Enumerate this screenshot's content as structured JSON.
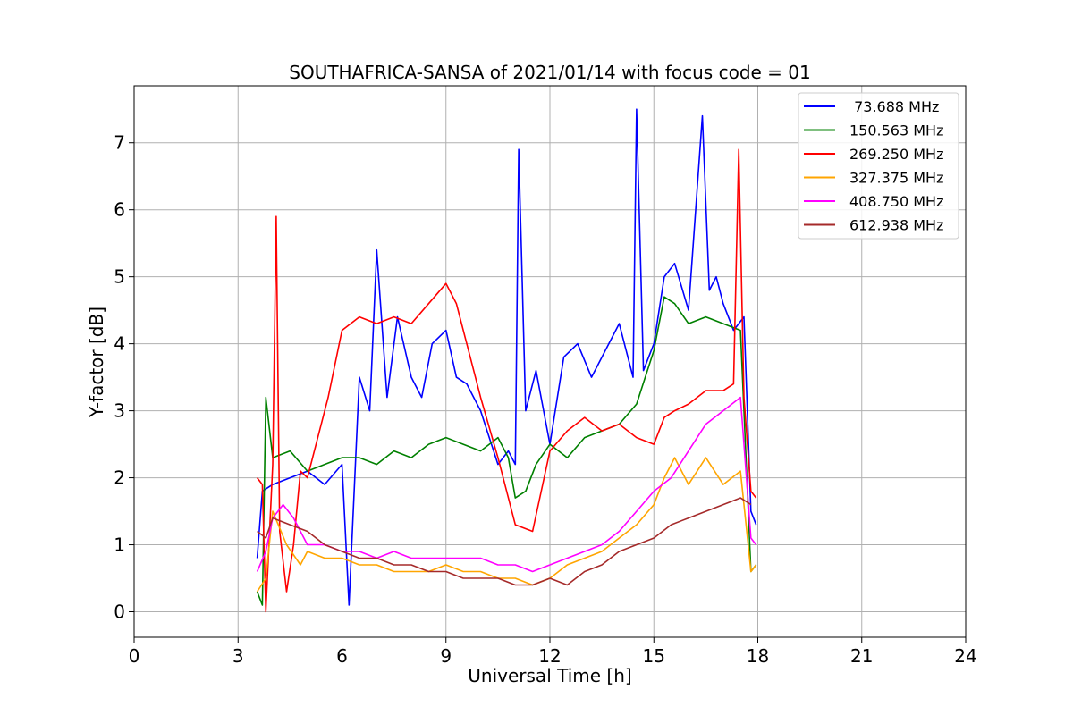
{
  "chart_data": {
    "type": "line",
    "title": "SOUTHAFRICA-SANSA of 2021/01/14 with focus code = 01",
    "xlabel": "Universal Time [h]",
    "ylabel": "Y-factor [dB]",
    "xlim": [
      0,
      24
    ],
    "ylim": [
      -0.38,
      7.85
    ],
    "xticks": [
      0,
      3,
      6,
      9,
      12,
      15,
      18,
      21,
      24
    ],
    "yticks": [
      0,
      1,
      2,
      3,
      4,
      5,
      6,
      7
    ],
    "grid": true,
    "legend_position": "top-right",
    "series": [
      {
        "name": " 73.688 MHz",
        "color": "#0000ff",
        "x": [
          3.55,
          3.7,
          4.0,
          4.5,
          5.0,
          5.5,
          6.0,
          6.2,
          6.5,
          6.8,
          7.0,
          7.3,
          7.6,
          8.0,
          8.3,
          8.6,
          9.0,
          9.3,
          9.6,
          10.0,
          10.5,
          10.8,
          11.0,
          11.1,
          11.3,
          11.6,
          12.0,
          12.4,
          12.8,
          13.2,
          13.6,
          14.0,
          14.4,
          14.5,
          14.7,
          15.0,
          15.3,
          15.6,
          16.0,
          16.4,
          16.6,
          16.8,
          17.0,
          17.3,
          17.6,
          17.8,
          17.95
        ],
        "y": [
          0.8,
          1.8,
          1.9,
          2.0,
          2.1,
          1.9,
          2.2,
          0.1,
          3.5,
          3.0,
          5.4,
          3.2,
          4.4,
          3.5,
          3.2,
          4.0,
          4.2,
          3.5,
          3.4,
          3.0,
          2.2,
          2.4,
          2.2,
          6.9,
          3.0,
          3.6,
          2.5,
          3.8,
          4.0,
          3.5,
          3.9,
          4.3,
          3.5,
          7.5,
          3.6,
          4.0,
          5.0,
          5.2,
          4.5,
          7.4,
          4.8,
          5.0,
          4.6,
          4.2,
          4.4,
          1.5,
          1.3
        ]
      },
      {
        "name": "150.563 MHz",
        "color": "#008000",
        "x": [
          3.55,
          3.7,
          3.8,
          4.0,
          4.5,
          5.0,
          5.5,
          6.0,
          6.5,
          7.0,
          7.5,
          8.0,
          8.5,
          9.0,
          9.5,
          10.0,
          10.5,
          10.8,
          11.0,
          11.3,
          11.6,
          12.0,
          12.5,
          13.0,
          13.5,
          14.0,
          14.5,
          15.0,
          15.3,
          15.6,
          16.0,
          16.5,
          17.0,
          17.5,
          17.8,
          17.95
        ],
        "y": [
          0.3,
          0.1,
          3.2,
          2.3,
          2.4,
          2.1,
          2.2,
          2.3,
          2.3,
          2.2,
          2.4,
          2.3,
          2.5,
          2.6,
          2.5,
          2.4,
          2.6,
          2.3,
          1.7,
          1.8,
          2.2,
          2.5,
          2.3,
          2.6,
          2.7,
          2.8,
          3.1,
          3.9,
          4.7,
          4.6,
          4.3,
          4.4,
          4.3,
          4.2,
          0.6,
          0.7
        ]
      },
      {
        "name": "269.250 MHz",
        "color": "#ff0000",
        "x": [
          3.55,
          3.7,
          3.8,
          4.0,
          4.1,
          4.2,
          4.4,
          4.6,
          4.8,
          5.0,
          5.3,
          5.6,
          6.0,
          6.5,
          7.0,
          7.5,
          8.0,
          8.5,
          9.0,
          9.3,
          9.6,
          10.0,
          10.5,
          11.0,
          11.5,
          12.0,
          12.5,
          13.0,
          13.5,
          14.0,
          14.5,
          15.0,
          15.3,
          15.6,
          16.0,
          16.5,
          17.0,
          17.3,
          17.45,
          17.6,
          17.8,
          17.95
        ],
        "y": [
          2.0,
          1.9,
          0.0,
          2.2,
          5.9,
          1.2,
          0.3,
          1.0,
          2.1,
          2.0,
          2.6,
          3.2,
          4.2,
          4.4,
          4.3,
          4.4,
          4.3,
          4.6,
          4.9,
          4.6,
          4.0,
          3.2,
          2.3,
          1.3,
          1.2,
          2.4,
          2.7,
          2.9,
          2.7,
          2.8,
          2.6,
          2.5,
          2.9,
          3.0,
          3.1,
          3.3,
          3.3,
          3.4,
          6.9,
          3.2,
          1.8,
          1.7
        ]
      },
      {
        "name": "327.375 MHz",
        "color": "#ffa500",
        "x": [
          3.55,
          3.8,
          4.0,
          4.4,
          4.8,
          5.0,
          5.5,
          6.0,
          6.5,
          7.0,
          7.5,
          8.0,
          8.5,
          9.0,
          9.5,
          10.0,
          10.5,
          11.0,
          11.5,
          12.0,
          12.5,
          13.0,
          13.5,
          14.0,
          14.5,
          15.0,
          15.3,
          15.6,
          16.0,
          16.5,
          17.0,
          17.5,
          17.8,
          17.95
        ],
        "y": [
          0.3,
          0.5,
          1.5,
          1.0,
          0.7,
          0.9,
          0.8,
          0.8,
          0.7,
          0.7,
          0.6,
          0.6,
          0.6,
          0.7,
          0.6,
          0.6,
          0.5,
          0.5,
          0.4,
          0.5,
          0.7,
          0.8,
          0.9,
          1.1,
          1.3,
          1.6,
          2.0,
          2.3,
          1.9,
          2.3,
          1.9,
          2.1,
          0.6,
          0.7
        ]
      },
      {
        "name": "408.750 MHz",
        "color": "#ff00ff",
        "x": [
          3.55,
          3.8,
          4.0,
          4.3,
          4.6,
          5.0,
          5.5,
          6.0,
          6.5,
          7.0,
          7.5,
          8.0,
          8.5,
          9.0,
          9.5,
          10.0,
          10.5,
          11.0,
          11.5,
          12.0,
          12.5,
          13.0,
          13.5,
          14.0,
          14.5,
          15.0,
          15.5,
          16.0,
          16.5,
          17.0,
          17.5,
          17.8,
          17.95
        ],
        "y": [
          0.6,
          0.9,
          1.4,
          1.6,
          1.4,
          1.0,
          1.0,
          0.9,
          0.9,
          0.8,
          0.9,
          0.8,
          0.8,
          0.8,
          0.8,
          0.8,
          0.7,
          0.7,
          0.6,
          0.7,
          0.8,
          0.9,
          1.0,
          1.2,
          1.5,
          1.8,
          2.0,
          2.4,
          2.8,
          3.0,
          3.2,
          1.1,
          1.0
        ]
      },
      {
        "name": "612.938 MHz",
        "color": "#a52a2a",
        "x": [
          3.55,
          3.8,
          4.0,
          4.5,
          5.0,
          5.5,
          6.0,
          6.5,
          7.0,
          7.5,
          8.0,
          8.5,
          9.0,
          9.5,
          10.0,
          10.5,
          11.0,
          11.5,
          12.0,
          12.5,
          13.0,
          13.5,
          14.0,
          14.5,
          15.0,
          15.5,
          16.0,
          16.5,
          17.0,
          17.5,
          17.8
        ],
        "y": [
          1.2,
          1.1,
          1.4,
          1.3,
          1.2,
          1.0,
          0.9,
          0.8,
          0.8,
          0.7,
          0.7,
          0.6,
          0.6,
          0.5,
          0.5,
          0.5,
          0.4,
          0.4,
          0.5,
          0.4,
          0.6,
          0.7,
          0.9,
          1.0,
          1.1,
          1.3,
          1.4,
          1.5,
          1.6,
          1.7,
          1.6
        ]
      }
    ]
  }
}
